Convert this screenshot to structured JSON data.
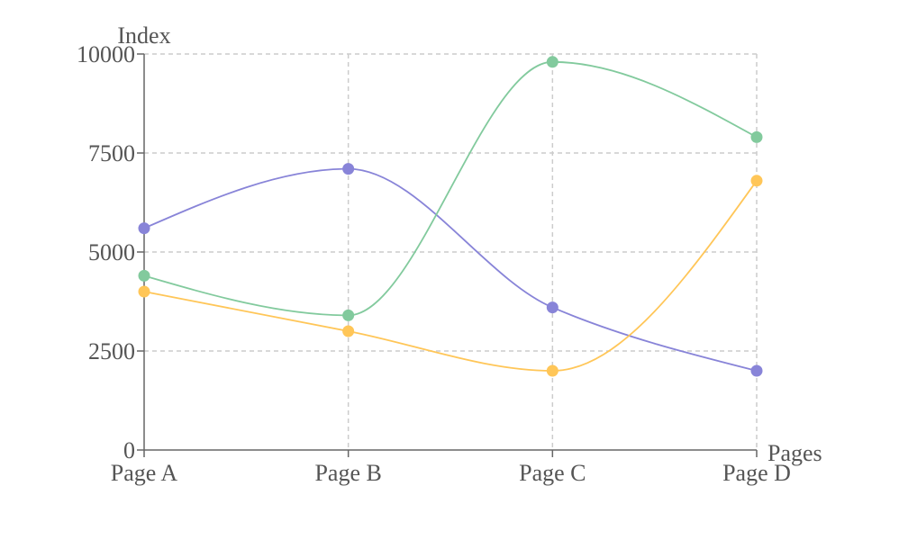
{
  "chart_data": {
    "type": "line",
    "title": "",
    "xlabel": "Pages",
    "ylabel": "Index",
    "categories": [
      "Page A",
      "Page B",
      "Page C",
      "Page D"
    ],
    "ylim": [
      0,
      10000
    ],
    "yticks": [
      "0",
      "2500",
      "5000",
      "7500",
      "10000"
    ],
    "grid": true,
    "curve": "smooth",
    "series": [
      {
        "color": "#8884d8",
        "values": [
          5600,
          7100,
          3600,
          2000
        ]
      },
      {
        "color": "#82ca9d",
        "values": [
          4400,
          3400,
          9800,
          7900
        ]
      },
      {
        "color": "#ffc658",
        "values": [
          4000,
          3000,
          2000,
          6800
        ]
      }
    ]
  }
}
